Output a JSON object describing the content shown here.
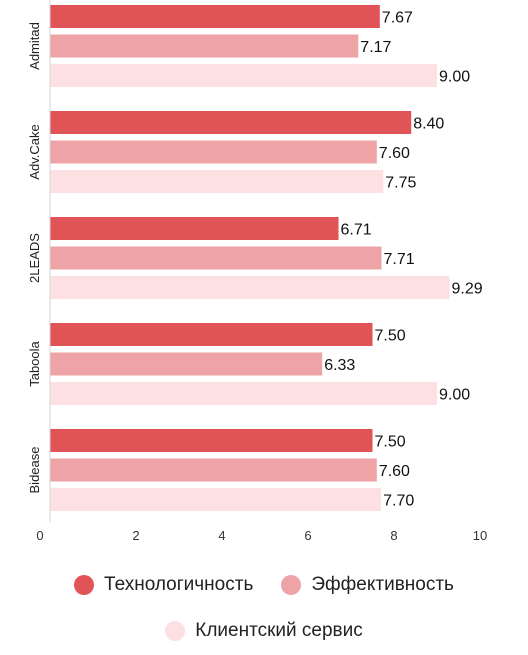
{
  "chart_data": {
    "type": "bar",
    "orientation": "horizontal",
    "categories": [
      "Admitad",
      "Adv.Cake",
      "2LEADS",
      "Taboola",
      "Bidease"
    ],
    "series": [
      {
        "name": "Технологичность",
        "values": [
          7.67,
          8.4,
          6.71,
          7.5,
          7.5
        ],
        "color": "#e05357",
        "labels": [
          "7.67",
          "8.40",
          "6.71",
          "7.50",
          "7.50"
        ]
      },
      {
        "name": "Эффективность",
        "values": [
          7.17,
          7.6,
          7.71,
          6.33,
          7.6
        ],
        "color": "#eea4a6",
        "labels": [
          "7.17",
          "7.60",
          "7.71",
          "6.33",
          "7.60"
        ]
      },
      {
        "name": "Клиентский сервис",
        "values": [
          9.0,
          7.75,
          9.29,
          9.0,
          7.7
        ],
        "color": "#fde0e2",
        "labels": [
          "9.00",
          "7.75",
          "9.29",
          "9.00",
          "7.70"
        ]
      }
    ],
    "xlim": [
      0,
      10
    ],
    "xticks": [
      "0",
      "2",
      "4",
      "6",
      "8",
      "10"
    ],
    "grid": false,
    "legend_position": "bottom"
  }
}
